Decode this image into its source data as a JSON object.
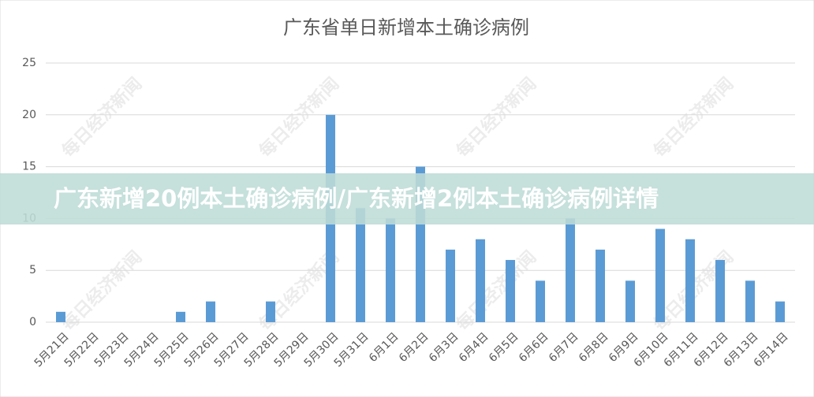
{
  "chart_data": {
    "type": "bar",
    "title": "广东省单日新增本土确诊病例",
    "categories": [
      "5月21日",
      "5月22日",
      "5月23日",
      "5月24日",
      "5月25日",
      "5月26日",
      "5月27日",
      "5月28日",
      "5月29日",
      "5月30日",
      "5月31日",
      "6月1日",
      "6月2日",
      "6月3日",
      "6月4日",
      "6月5日",
      "6月6日",
      "6月7日",
      "6月8日",
      "6月9日",
      "6月10日",
      "6月11日",
      "6月12日",
      "6月13日",
      "6月14日"
    ],
    "values": [
      1,
      0,
      0,
      0,
      1,
      2,
      0,
      2,
      0,
      20,
      11,
      10,
      15,
      7,
      8,
      6,
      4,
      10,
      7,
      4,
      9,
      8,
      6,
      4,
      2
    ],
    "color": "#5b9bd5",
    "ylim": [
      0,
      25
    ],
    "yticks": [
      0,
      5,
      10,
      15,
      20,
      25
    ],
    "grid": true
  },
  "banner": "广东新增20例本土确诊病例/广东新增2例本土确诊病例详情",
  "watermark": "每日经济新闻"
}
